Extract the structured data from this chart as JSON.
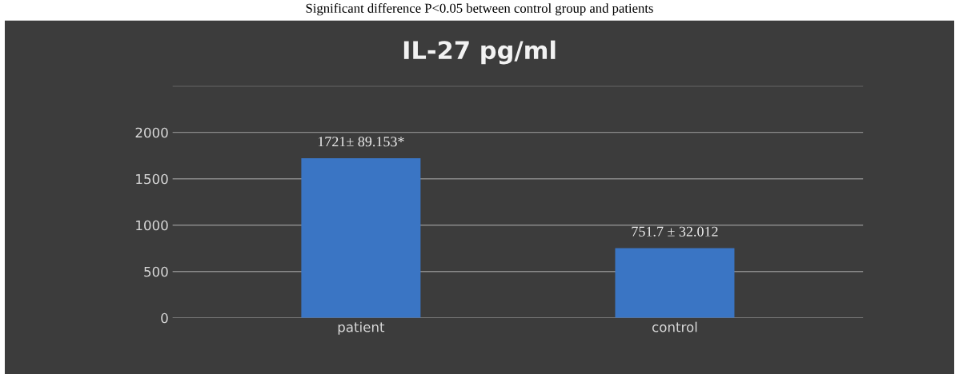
{
  "chart_data": {
    "type": "bar",
    "title": "IL-27 pg/ml",
    "annotations": [
      "Significant difference P<0.05 between control group and patients"
    ],
    "categories": [
      "patient",
      "control"
    ],
    "values": [
      1721,
      751.7
    ],
    "value_labels": [
      "1721± 89.153*",
      "751.7 ± 32.012"
    ],
    "color": "#3a75c4",
    "ylim": [
      0,
      2500
    ],
    "yticks": [
      0,
      500,
      1000,
      1500,
      2000,
      {
        "value": 2500,
        "label": null
      }
    ],
    "grid": "y",
    "legend": false
  }
}
